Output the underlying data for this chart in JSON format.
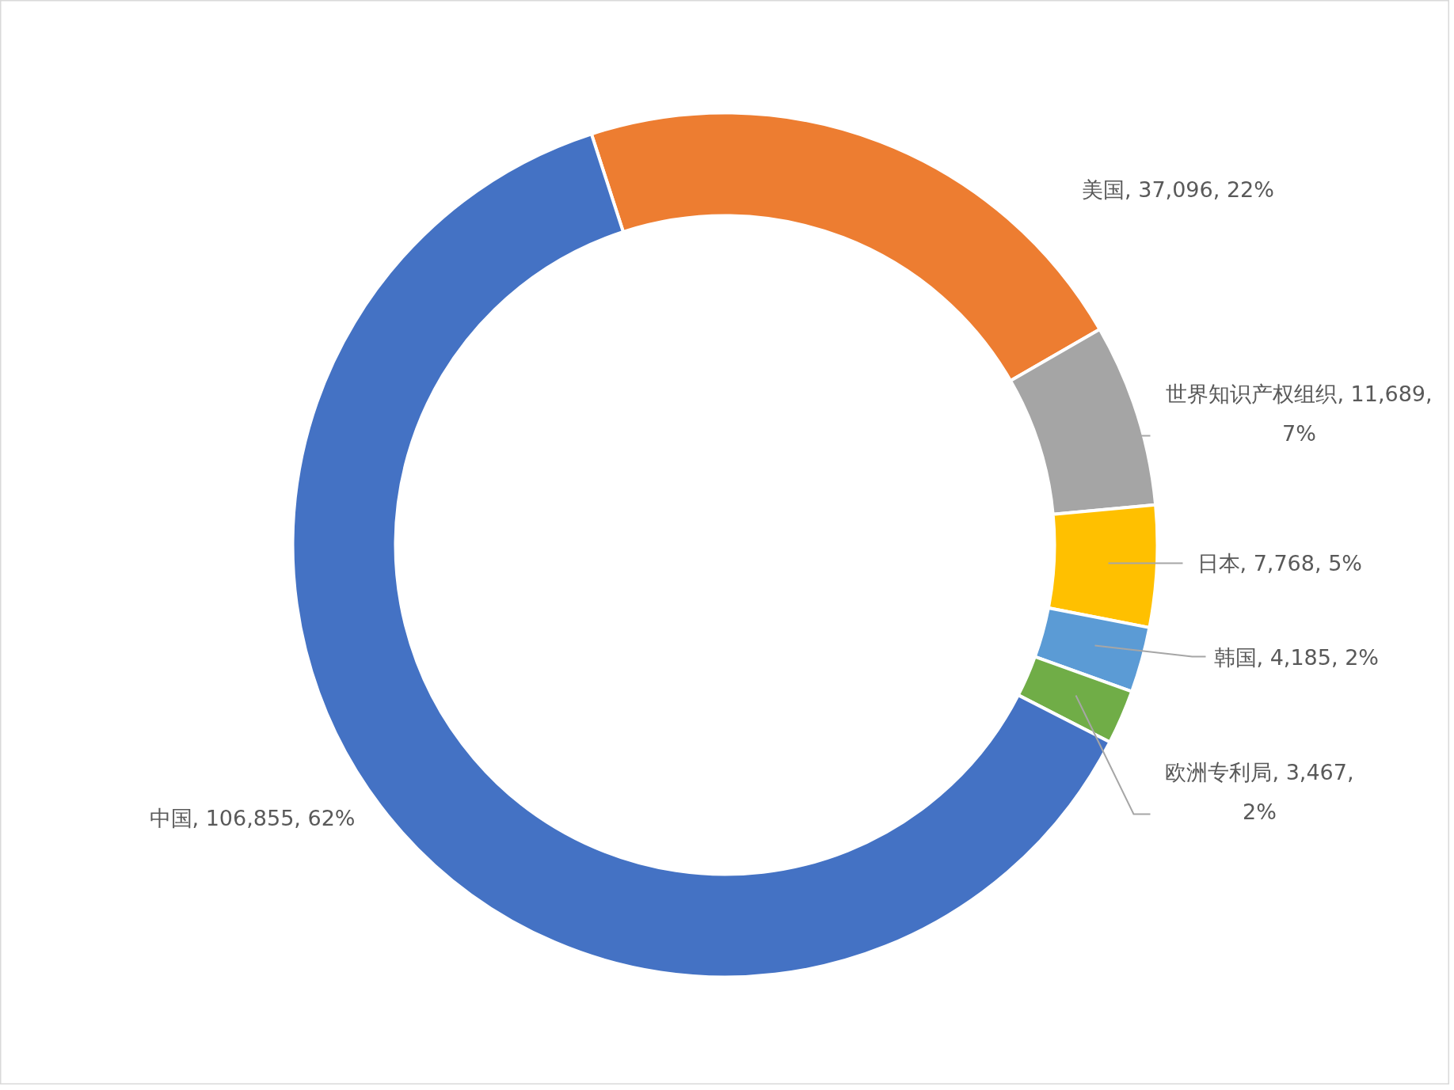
{
  "chart_data": {
    "type": "donut",
    "categories": [
      "美国",
      "世界知识产权组织",
      "日本",
      "韩国",
      "欧洲专利局",
      "中国"
    ],
    "values": [
      37096,
      11689,
      7768,
      4185,
      3467,
      106855
    ],
    "colors": [
      "#ed7d31",
      "#a5a5a5",
      "#ffc000",
      "#5b9bd5",
      "#70ad47",
      "#4472c4"
    ],
    "value_labels": [
      "37,096, 22%",
      "11,689, 7%",
      "7,768, 5%",
      "4,185, 2%",
      "3,467, 2%",
      "106,855, 62%"
    ]
  }
}
